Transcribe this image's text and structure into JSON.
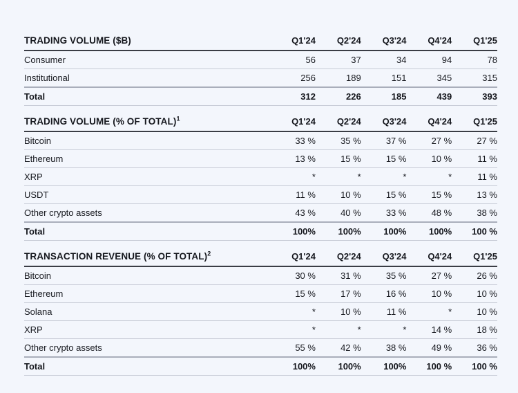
{
  "colors": {
    "background": "#f3f6fc",
    "text": "#16181e",
    "header_rule": "#3a3d45",
    "row_rule": "#c8ccd7",
    "total_rule": "#a9aebb"
  },
  "chart_data": [
    {
      "type": "table",
      "title": "TRADING VOLUME ($B)",
      "superscript": "",
      "columns": [
        "Q1'24",
        "Q2'24",
        "Q3'24",
        "Q4'24",
        "Q1'25"
      ],
      "rows": [
        {
          "label": "Consumer",
          "bold": false,
          "values": [
            "56",
            "37",
            "34",
            "94",
            "78"
          ]
        },
        {
          "label": "Institutional",
          "bold": false,
          "values": [
            "256",
            "189",
            "151",
            "345",
            "315"
          ]
        },
        {
          "label": "Total",
          "bold": true,
          "values": [
            "312",
            "226",
            "185",
            "439",
            "393"
          ]
        }
      ]
    },
    {
      "type": "table",
      "title": "TRADING VOLUME (% OF TOTAL)",
      "superscript": "1",
      "columns": [
        "Q1'24",
        "Q2'24",
        "Q3'24",
        "Q4'24",
        "Q1'25"
      ],
      "rows": [
        {
          "label": "Bitcoin",
          "bold": false,
          "values": [
            "33 %",
            "35 %",
            "37 %",
            "27 %",
            "27 %"
          ]
        },
        {
          "label": "Ethereum",
          "bold": false,
          "values": [
            "13 %",
            "15 %",
            "15 %",
            "10 %",
            "11 %"
          ]
        },
        {
          "label": "XRP",
          "bold": false,
          "values": [
            "*",
            "*",
            "*",
            "*",
            "11 %"
          ]
        },
        {
          "label": "USDT",
          "bold": false,
          "values": [
            "11 %",
            "10 %",
            "15 %",
            "15 %",
            "13 %"
          ]
        },
        {
          "label": "Other crypto assets",
          "bold": false,
          "values": [
            "43 %",
            "40 %",
            "33 %",
            "48 %",
            "38 %"
          ]
        },
        {
          "label": "Total",
          "bold": true,
          "values": [
            "100%",
            "100%",
            "100%",
            "100%",
            "100 %"
          ]
        }
      ]
    },
    {
      "type": "table",
      "title": "TRANSACTION REVENUE (% OF TOTAL)",
      "superscript": "2",
      "columns": [
        "Q1'24",
        "Q2'24",
        "Q3'24",
        "Q4'24",
        "Q1'25"
      ],
      "rows": [
        {
          "label": "Bitcoin",
          "bold": false,
          "values": [
            "30 %",
            "31 %",
            "35 %",
            "27 %",
            "26 %"
          ]
        },
        {
          "label": "Ethereum",
          "bold": false,
          "values": [
            "15 %",
            "17 %",
            "16 %",
            "10 %",
            "10 %"
          ]
        },
        {
          "label": "Solana",
          "bold": false,
          "values": [
            "*",
            "10 %",
            "11 %",
            "*",
            "10 %"
          ]
        },
        {
          "label": "XRP",
          "bold": false,
          "values": [
            "*",
            "*",
            "*",
            "14 %",
            "18 %"
          ]
        },
        {
          "label": "Other crypto assets",
          "bold": false,
          "values": [
            "55 %",
            "42 %",
            "38 %",
            "49 %",
            "36 %"
          ]
        },
        {
          "label": "Total",
          "bold": true,
          "values": [
            "100%",
            "100%",
            "100%",
            "100 %",
            "100 %"
          ]
        }
      ]
    }
  ]
}
